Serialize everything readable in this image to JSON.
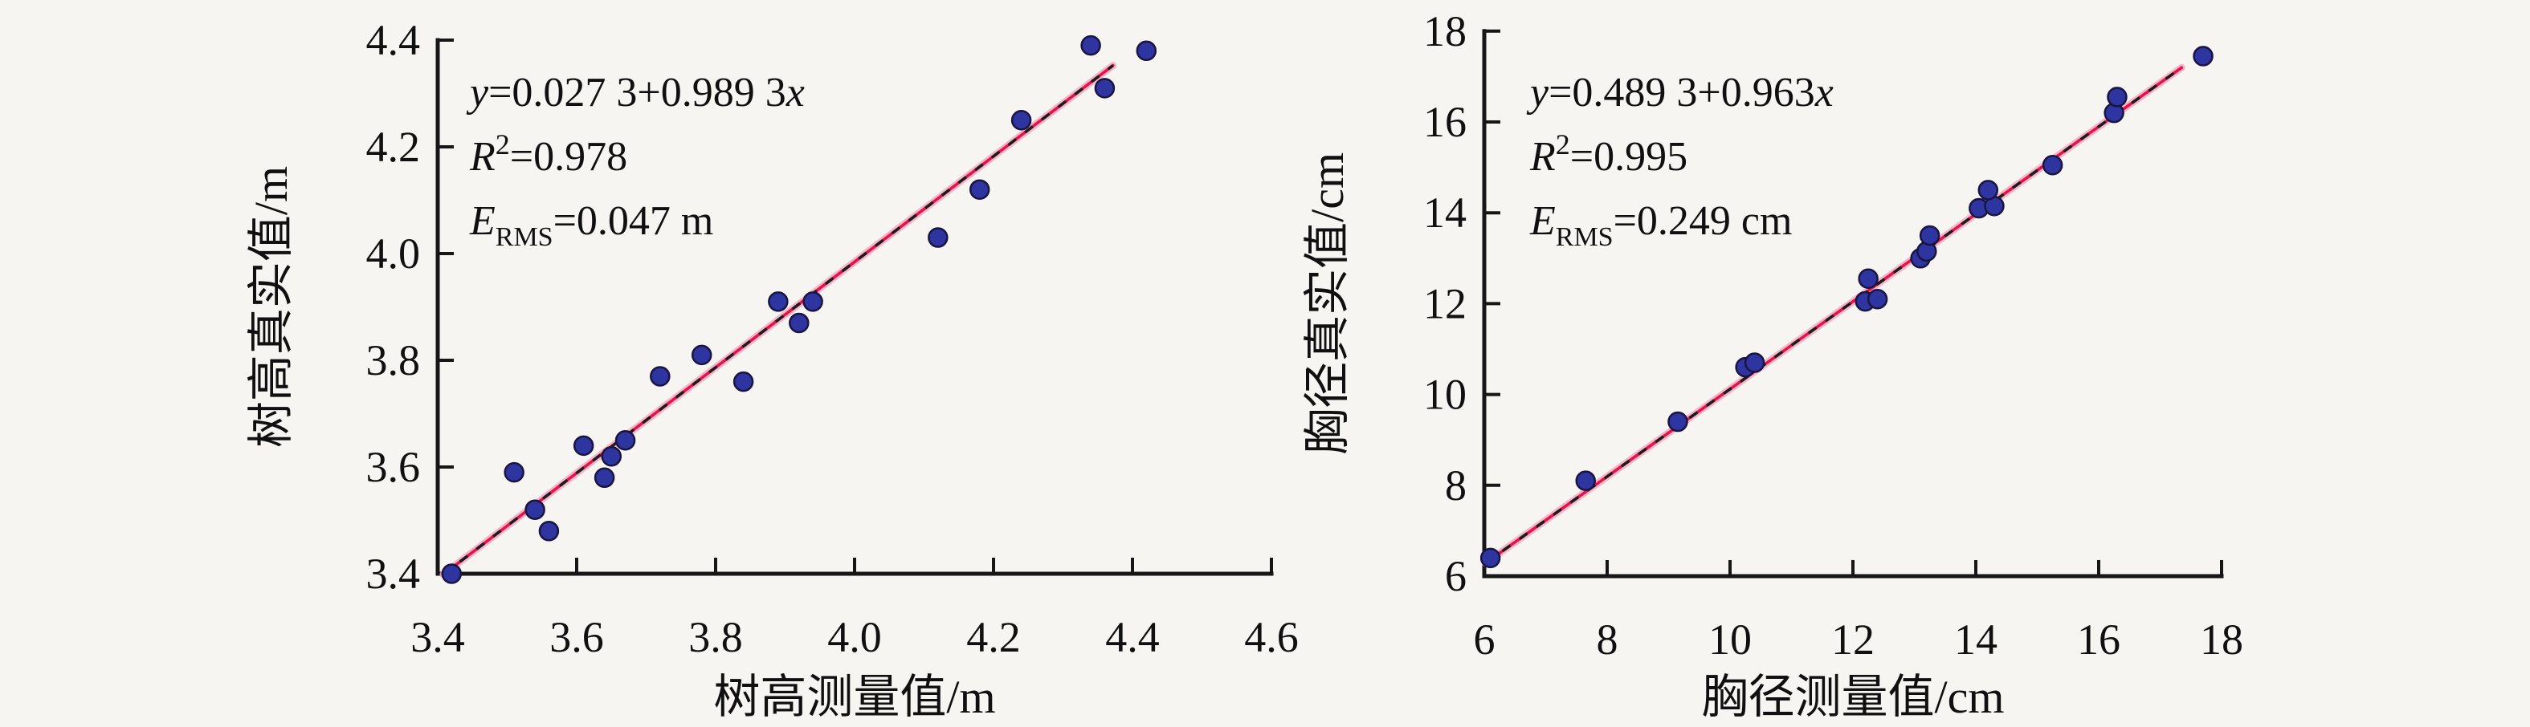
{
  "figure": {
    "background": "#f6f5f2",
    "text_color": "#101010",
    "axis_color": "#161616",
    "point_fill": "#2e35a0",
    "point_edge": "#191540",
    "regression_color": "#e5134a",
    "regression_halo": "#f6aac2",
    "identity_dash_color": "#1d1d1d"
  },
  "chart_data": [
    {
      "id": "tree-height",
      "type": "scatter",
      "xlabel": "树高测量值/m",
      "ylabel": "树高真实值/m",
      "xlim": [
        3.4,
        4.6
      ],
      "ylim": [
        3.4,
        4.4
      ],
      "xticks": [
        "3.4",
        "3.6",
        "3.8",
        "4.0",
        "4.2",
        "4.4",
        "4.6"
      ],
      "yticks": [
        "3.4",
        "3.6",
        "3.8",
        "4.0",
        "4.2",
        "4.4"
      ],
      "grid": false,
      "legend": "none",
      "annotation_lines": [
        {
          "name": "equation-label",
          "segments": [
            {
              "t": "y",
              "style": "i"
            },
            {
              "t": "=0.027 3+0.989 3",
              "style": "n"
            },
            {
              "t": "x",
              "style": "i"
            }
          ]
        },
        {
          "name": "r-squared-label",
          "segments": [
            {
              "t": "R",
              "style": "i"
            },
            {
              "t": "2",
              "style": "sup"
            },
            {
              "t": "=0.978",
              "style": "n"
            }
          ]
        },
        {
          "name": "rms-error-label",
          "segments": [
            {
              "t": "E",
              "style": "i"
            },
            {
              "t": "RMS",
              "style": "sub"
            },
            {
              "t": "=0.047 m",
              "style": "n"
            }
          ]
        }
      ],
      "regression": {
        "equation": "y=0.027 3+0.989 3x",
        "intercept": 0.0273,
        "slope": 0.9893,
        "r2": 0.978,
        "rmse": "0.047 m",
        "x_start": 3.408,
        "x_end": 4.372
      },
      "points": [
        [
          3.42,
          3.4
        ],
        [
          3.51,
          3.59
        ],
        [
          3.54,
          3.52
        ],
        [
          3.56,
          3.48
        ],
        [
          3.61,
          3.64
        ],
        [
          3.64,
          3.58
        ],
        [
          3.65,
          3.62
        ],
        [
          3.67,
          3.65
        ],
        [
          3.72,
          3.77
        ],
        [
          3.78,
          3.81
        ],
        [
          3.84,
          3.76
        ],
        [
          3.89,
          3.91
        ],
        [
          3.92,
          3.87
        ],
        [
          3.94,
          3.91
        ],
        [
          4.12,
          4.03
        ],
        [
          4.18,
          4.12
        ],
        [
          4.24,
          4.25
        ],
        [
          4.34,
          4.39
        ],
        [
          4.36,
          4.31
        ],
        [
          4.42,
          4.38
        ]
      ]
    },
    {
      "id": "dbh",
      "type": "scatter",
      "xlabel": "胸径测量值/cm",
      "ylabel": "胸径真实值/cm",
      "xlim": [
        6,
        18
      ],
      "ylim": [
        6,
        18
      ],
      "xticks": [
        "6",
        "8",
        "10",
        "12",
        "14",
        "16",
        "18"
      ],
      "yticks": [
        "6",
        "8",
        "10",
        "12",
        "14",
        "16",
        "18"
      ],
      "grid": false,
      "legend": "none",
      "annotation_lines": [
        {
          "name": "equation-label",
          "segments": [
            {
              "t": "y",
              "style": "i"
            },
            {
              "t": "=0.489 3+0.963",
              "style": "n"
            },
            {
              "t": "x",
              "style": "i"
            }
          ]
        },
        {
          "name": "r-squared-label",
          "segments": [
            {
              "t": "R",
              "style": "i"
            },
            {
              "t": "2",
              "style": "sup"
            },
            {
              "t": "=0.995",
              "style": "n"
            }
          ]
        },
        {
          "name": "rms-error-label",
          "segments": [
            {
              "t": "E",
              "style": "i"
            },
            {
              "t": "RMS",
              "style": "sub"
            },
            {
              "t": "=0.249 cm",
              "style": "n"
            }
          ]
        }
      ],
      "regression": {
        "equation": "y=0.489 3+0.963x",
        "intercept": 0.4893,
        "slope": 0.963,
        "r2": 0.995,
        "rmse": "0.249 cm",
        "x_start": 6.02,
        "x_end": 17.35
      },
      "points": [
        [
          6.1,
          6.4
        ],
        [
          7.65,
          8.1
        ],
        [
          9.15,
          9.4
        ],
        [
          10.25,
          10.6
        ],
        [
          10.4,
          10.7
        ],
        [
          12.2,
          12.05
        ],
        [
          12.4,
          12.1
        ],
        [
          12.25,
          12.55
        ],
        [
          13.1,
          13.0
        ],
        [
          13.2,
          13.15
        ],
        [
          13.25,
          13.5
        ],
        [
          14.05,
          14.1
        ],
        [
          14.3,
          14.15
        ],
        [
          14.2,
          14.5
        ],
        [
          15.25,
          15.05
        ],
        [
          16.25,
          16.2
        ],
        [
          16.3,
          16.55
        ],
        [
          17.7,
          17.45
        ]
      ]
    }
  ]
}
